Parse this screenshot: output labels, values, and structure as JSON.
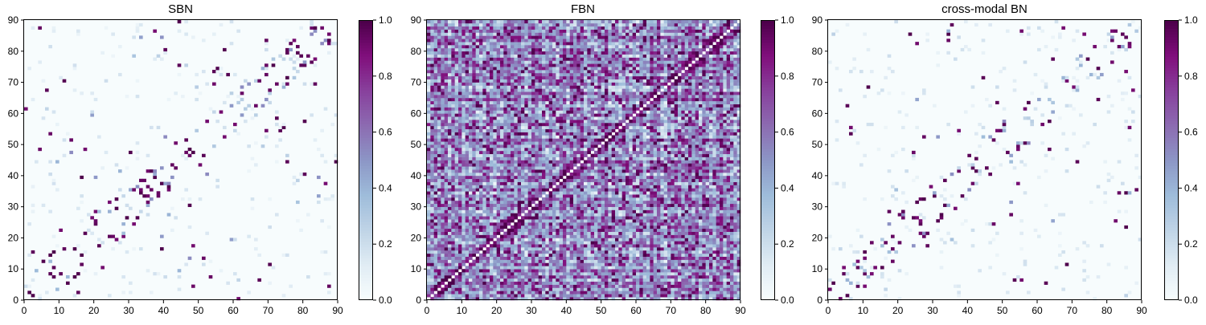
{
  "chart_data": [
    {
      "type": "heatmap",
      "title": "SBN",
      "xlim": [
        0,
        90
      ],
      "ylim": [
        0,
        90
      ],
      "xticks": [
        "0",
        "10",
        "20",
        "30",
        "40",
        "50",
        "60",
        "70",
        "80",
        "90"
      ],
      "yticks": [
        "0",
        "10",
        "20",
        "30",
        "40",
        "50",
        "60",
        "70",
        "80",
        "90"
      ],
      "colorbar": {
        "range": [
          0.0,
          1.0
        ],
        "ticks": [
          "0.0",
          "0.2",
          "0.4",
          "0.6",
          "0.8",
          "1.0"
        ]
      },
      "density": "sparse"
    },
    {
      "type": "heatmap",
      "title": "FBN",
      "xlim": [
        0,
        90
      ],
      "ylim": [
        0,
        90
      ],
      "xticks": [
        "0",
        "10",
        "20",
        "30",
        "40",
        "50",
        "60",
        "70",
        "80",
        "90"
      ],
      "yticks": [
        "0",
        "10",
        "20",
        "30",
        "40",
        "50",
        "60",
        "70",
        "80",
        "90"
      ],
      "colorbar": {
        "range": [
          0.0,
          1.0
        ],
        "ticks": [
          "0.0",
          "0.2",
          "0.4",
          "0.6",
          "0.8",
          "1.0"
        ]
      },
      "density": "dense"
    },
    {
      "type": "heatmap",
      "title": "cross-modal BN",
      "xlim": [
        0,
        90
      ],
      "ylim": [
        0,
        90
      ],
      "xticks": [
        "0",
        "10",
        "20",
        "30",
        "40",
        "50",
        "60",
        "70",
        "80",
        "90"
      ],
      "yticks": [
        "0",
        "10",
        "20",
        "30",
        "40",
        "50",
        "60",
        "70",
        "80",
        "90"
      ],
      "colorbar": {
        "range": [
          0.0,
          1.0
        ],
        "ticks": [
          "0.0",
          "0.2",
          "0.4",
          "0.6",
          "0.8",
          "1.0"
        ]
      },
      "density": "sparse"
    }
  ],
  "colormap": [
    "#f7fcfd",
    "#e0ecf4",
    "#bfd3e6",
    "#9ebcda",
    "#8c96c6",
    "#8c6bb1",
    "#88419d",
    "#810f7c",
    "#4d004b"
  ]
}
